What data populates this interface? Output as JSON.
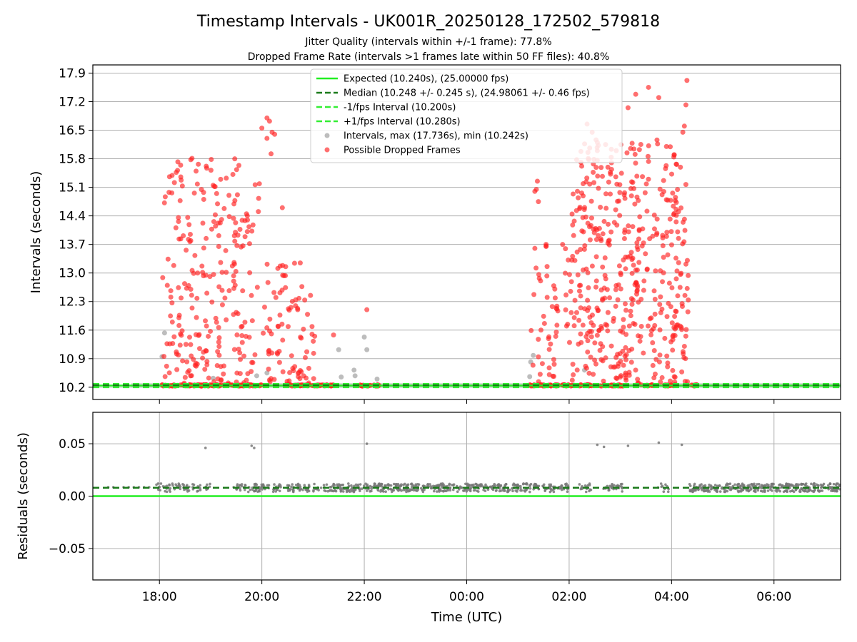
{
  "figure": {
    "title": "Timestamp Intervals - UK001R_20250128_172502_579818",
    "subtitle_line1": "Jitter Quality (intervals within +/-1 frame): 77.8%",
    "subtitle_line2": "Dropped Frame Rate (intervals >1 frames late within 50 FF files): 40.8%"
  },
  "colors": {
    "expected": "#22ee22",
    "median": "#1a7a1a",
    "interval_band": "#33ee33",
    "normal_points": "#999999",
    "dropped_points": "#ff2222",
    "residual_points": "#777777",
    "grid": "#b0b0b0"
  },
  "chart_data": [
    {
      "type": "scatter",
      "ylabel": "Intervals (seconds)",
      "xlabel": "",
      "x_units": "hours relative to 00:00 UTC",
      "xlim": [
        -7.3,
        7.3
      ],
      "ylim": [
        9.9,
        18.1
      ],
      "yticks": [
        10.2,
        10.9,
        11.6,
        12.3,
        13.0,
        13.7,
        14.4,
        15.1,
        15.8,
        16.5,
        17.2,
        17.9
      ],
      "ytick_labels": [
        "10.2",
        "10.9",
        "11.6",
        "12.3",
        "13.0",
        "13.7",
        "14.4",
        "15.1",
        "15.8",
        "16.5",
        "17.2",
        "17.9"
      ],
      "grid": "horizontal",
      "legend_position": "top-center",
      "legend": [
        {
          "label": "Expected (10.240s), (25.00000 fps)",
          "kind": "solid-line",
          "color_key": "expected"
        },
        {
          "label": "Median (10.248 +/- 0.245 s), (24.98061 +/- 0.46 fps)",
          "kind": "dashed-line",
          "color_key": "median"
        },
        {
          "label": "-1/fps Interval (10.200s)",
          "kind": "dashed-line",
          "color_key": "interval_band"
        },
        {
          "label": "+1/fps Interval (10.280s)",
          "kind": "dashed-line",
          "color_key": "interval_band"
        },
        {
          "label": "Intervals, max (17.736s), min (10.242s)",
          "kind": "dot",
          "color_key": "normal_points"
        },
        {
          "label": "Possible Dropped Frames",
          "kind": "dot",
          "color_key": "dropped_points"
        }
      ],
      "reference_lines": {
        "expected": 10.24,
        "median": 10.248,
        "minus_1fps": 10.2,
        "plus_1fps": 10.28
      },
      "coverage": {
        "x_start": -6.55,
        "x_end": 7.3,
        "y": 10.245
      },
      "series": [
        {
          "kind": "normal",
          "points": [
            [
              -5.9,
              11.53
            ],
            [
              -4.95,
              10.42
            ],
            [
              -4.1,
              10.48
            ],
            [
              -2.45,
              10.45
            ],
            [
              -2.5,
              11.12
            ],
            [
              -2.2,
              10.62
            ],
            [
              -2.18,
              10.48
            ],
            [
              -2.0,
              11.43
            ],
            [
              -1.95,
              11.12
            ],
            [
              1.23,
              10.46
            ],
            [
              1.25,
              10.82
            ],
            [
              1.3,
              10.98
            ],
            [
              2.3,
              10.62
            ],
            [
              -5.95,
              10.95
            ],
            [
              -3.9,
              10.55
            ],
            [
              -1.75,
              10.4
            ]
          ]
        },
        {
          "kind": "dropped",
          "clusters": [
            {
              "x_min": -5.95,
              "x_max": -4.0,
              "y_min": 10.3,
              "y_max": 15.9,
              "count": 240
            },
            {
              "x_min": -4.0,
              "x_max": -2.95,
              "y_min": 10.3,
              "y_max": 13.3,
              "count": 80
            },
            {
              "x_min": 1.25,
              "x_max": 2.05,
              "y_min": 10.3,
              "y_max": 13.7,
              "count": 50
            },
            {
              "x_min": 2.05,
              "x_max": 4.35,
              "y_min": 10.3,
              "y_max": 16.3,
              "count": 460
            }
          ],
          "points": [
            [
              -4.0,
              16.55
            ],
            [
              -3.9,
              16.8
            ],
            [
              -3.85,
              16.72
            ],
            [
              -3.8,
              16.45
            ],
            [
              -3.75,
              16.4
            ],
            [
              -3.9,
              16.3
            ],
            [
              -3.82,
              15.92
            ],
            [
              -4.3,
              14.45
            ],
            [
              -4.28,
              14.3
            ],
            [
              -1.95,
              12.1
            ],
            [
              -2.6,
              11.48
            ],
            [
              1.38,
              15.25
            ],
            [
              1.36,
              15.05
            ],
            [
              1.4,
              14.75
            ],
            [
              1.33,
              15.0
            ],
            [
              1.55,
              13.65
            ],
            [
              2.35,
              16.65
            ],
            [
              2.45,
              16.45
            ],
            [
              2.55,
              16.2
            ],
            [
              3.15,
              17.05
            ],
            [
              3.3,
              17.38
            ],
            [
              3.55,
              17.55
            ],
            [
              3.75,
              17.3
            ],
            [
              4.3,
              17.72
            ],
            [
              4.28,
              17.12
            ],
            [
              4.25,
              16.6
            ],
            [
              4.22,
              16.45
            ],
            [
              1.55,
              13.7
            ],
            [
              1.45,
              11.6
            ],
            [
              -3.6,
              14.6
            ],
            [
              -3.3,
              12.1
            ],
            [
              -3.05,
              12.45
            ],
            [
              -3.02,
              11.5
            ],
            [
              -4.55,
              12.8
            ],
            [
              -4.95,
              15.15
            ],
            [
              1.95,
              11.7
            ],
            [
              1.75,
              11.55
            ],
            [
              1.7,
              10.88
            ],
            [
              3.2,
              16.05
            ],
            [
              3.4,
              16.15
            ],
            [
              3.9,
              16.1
            ],
            [
              4.05,
              15.9
            ]
          ],
          "band": {
            "y": 10.245,
            "spans": [
              [
                -5.95,
                -4.0
              ],
              [
                -3.55,
                -2.6
              ],
              [
                -2.1,
                -1.7
              ],
              [
                1.2,
                2.1
              ],
              [
                2.2,
                2.45
              ],
              [
                2.6,
                3.05
              ],
              [
                3.4,
                3.65
              ],
              [
                3.85,
                4.1
              ],
              [
                4.3,
                4.5
              ]
            ]
          }
        }
      ]
    },
    {
      "type": "scatter",
      "ylabel": "Residuals (seconds)",
      "xlabel": "Time (UTC)",
      "x_units": "hours relative to 00:00 UTC",
      "xlim": [
        -7.3,
        7.3
      ],
      "ylim": [
        -0.08,
        0.08
      ],
      "yticks": [
        -0.05,
        0.0,
        0.05
      ],
      "ytick_labels": [
        "−0.05",
        "0.00",
        "0.05"
      ],
      "xticks": [
        -6,
        -4,
        -2,
        0,
        2,
        4,
        6
      ],
      "xtick_labels": [
        "18:00",
        "20:00",
        "22:00",
        "00:00",
        "02:00",
        "04:00",
        "06:00"
      ],
      "grid": "both",
      "reference_lines": {
        "expected": 0.0,
        "median": 0.008
      },
      "series": [
        {
          "kind": "residuals",
          "baseline": 0.008,
          "spread": 0.004,
          "segments": [
            {
              "x_min": -6.1,
              "x_max": -5.0,
              "count": 60
            },
            {
              "x_min": -4.5,
              "x_max": -3.6,
              "count": 60
            },
            {
              "x_min": -3.5,
              "x_max": 2.0,
              "count": 520
            },
            {
              "x_min": 2.2,
              "x_max": 2.45,
              "count": 15
            },
            {
              "x_min": 2.65,
              "x_max": 3.05,
              "count": 30
            },
            {
              "x_min": 3.6,
              "x_max": 3.95,
              "count": 10
            },
            {
              "x_min": 4.35,
              "x_max": 7.3,
              "count": 330
            }
          ],
          "points": [
            [
              -6.6,
              0.0085
            ],
            [
              -6.7,
              0.0085
            ],
            [
              -6.9,
              0.0085
            ],
            [
              -6.5,
              0.0085
            ],
            [
              -6.4,
              0.0085
            ],
            [
              -6.3,
              0.0085
            ],
            [
              -6.2,
              0.0085
            ],
            [
              -6.0,
              0.0085
            ],
            [
              -4.55,
              0.0085
            ],
            [
              -4.45,
              0.0085
            ],
            [
              -4.35,
              0.0085
            ],
            [
              -4.25,
              0.0085
            ],
            [
              -4.15,
              0.0085
            ],
            [
              -4.05,
              0.0085
            ],
            [
              -4.0,
              0.0085
            ],
            [
              -4.1,
              0.0085
            ],
            [
              -5.1,
              0.046
            ],
            [
              -4.2,
              0.048
            ],
            [
              -4.15,
              0.046
            ],
            [
              -1.95,
              0.05
            ],
            [
              2.55,
              0.049
            ],
            [
              2.68,
              0.047
            ],
            [
              3.15,
              0.048
            ],
            [
              3.75,
              0.051
            ],
            [
              4.2,
              0.049
            ],
            [
              -7.0,
              0.0085
            ],
            [
              -5.35,
              0.0085
            ]
          ]
        }
      ]
    }
  ]
}
